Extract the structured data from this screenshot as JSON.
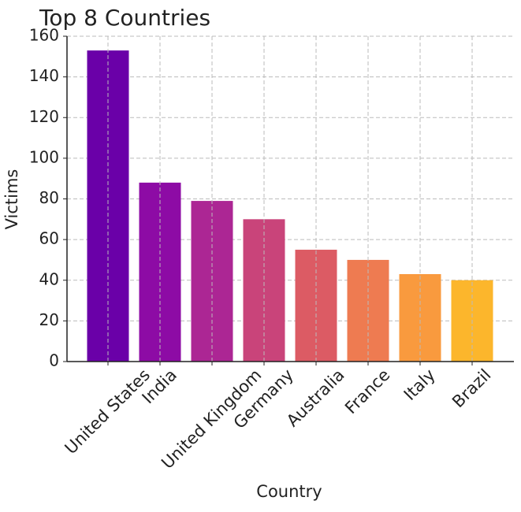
{
  "chart_data": {
    "type": "bar",
    "title": "Top 8 Countries",
    "x_label": "Country",
    "y_label": "Victims",
    "categories": [
      "United States",
      "India",
      "United Kingdom",
      "Germany",
      "Australia",
      "France",
      "Italy",
      "Brazil"
    ],
    "values": [
      153,
      88,
      79,
      70,
      55,
      50,
      43,
      40
    ],
    "colors": [
      "#6a00a8",
      "#8d0ba5",
      "#ac2694",
      "#c9447a",
      "#dc5b64",
      "#ee7b51",
      "#f99a3e",
      "#fcb62c"
    ],
    "ylim": [
      0,
      160
    ],
    "yticks": [
      0,
      20,
      40,
      60,
      80,
      100,
      120,
      140,
      160
    ],
    "grid": true
  }
}
